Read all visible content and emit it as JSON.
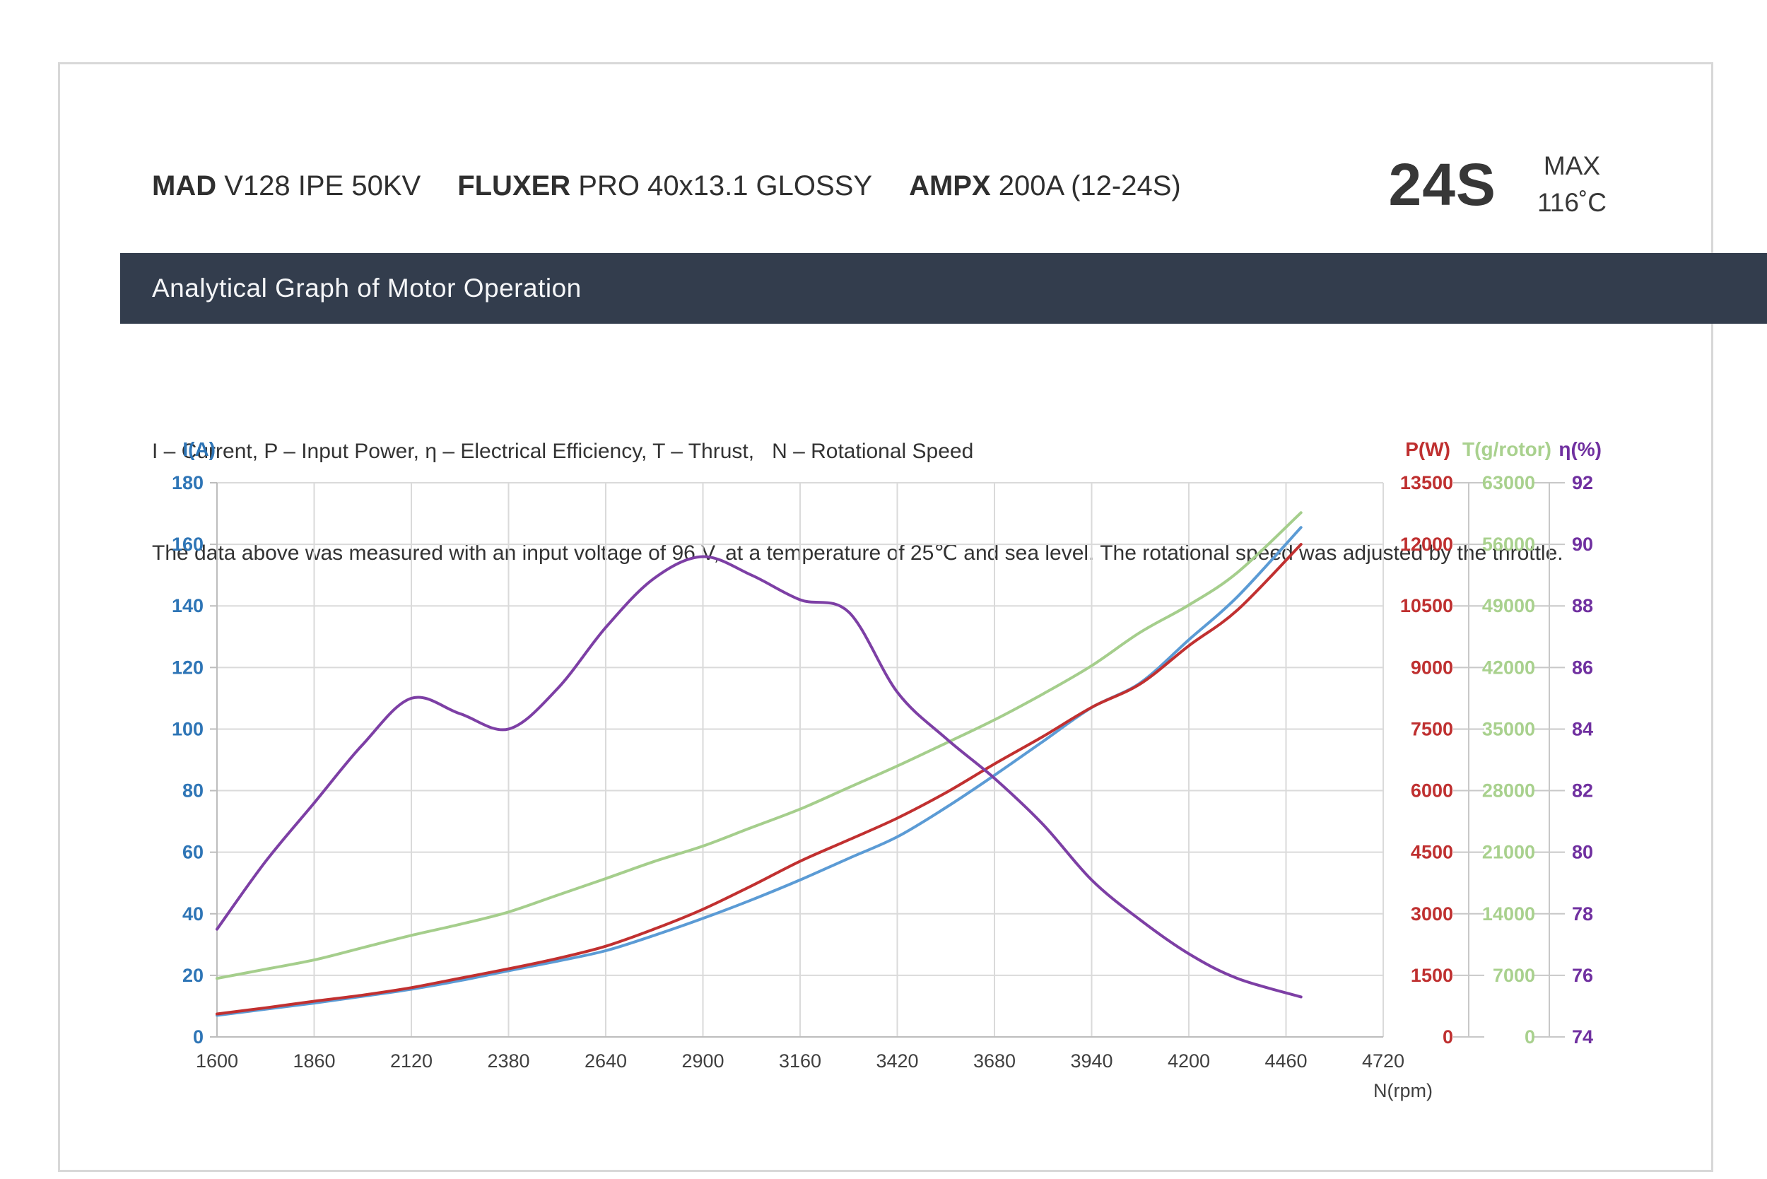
{
  "header": {
    "products": [
      {
        "brand": "MAD",
        "model": " V128 IPE 50KV"
      },
      {
        "brand": "FLUXER",
        "model": " PRO 40x13.1 GLOSSY"
      },
      {
        "brand": "AMPX",
        "model": " 200A (12-24S)"
      }
    ],
    "battery_rating": "24S",
    "max_label": "MAX",
    "max_temp": "116˚C"
  },
  "section": {
    "title": "Analytical Graph of Motor Operation"
  },
  "description": {
    "line1": "I – Current, P – Input Power, η – Electrical Efficiency, T – Thrust,   N – Rotational Speed",
    "line2": "The data above was measured with an input voltage of 96 V, at a temperature of 25℃ and sea level. The rotational speed was adjusted by the throttle."
  },
  "chart_data": {
    "type": "line",
    "title": "Analytical Graph of Motor Operation",
    "grid": true,
    "legend_position": "none",
    "x_axis": {
      "label": "N(rpm)",
      "min": 1600,
      "max": 4720,
      "step": 260,
      "tick_labels": [
        "1600",
        "1860",
        "2120",
        "2380",
        "2640",
        "2900",
        "3160",
        "3420",
        "3680",
        "3940",
        "4200",
        "4460",
        "4720"
      ],
      "tick_color": "#404040"
    },
    "y_axes": [
      {
        "id": "I",
        "label": "I(A)",
        "side": "left",
        "min": 0,
        "max": 180,
        "step": 20,
        "color": "#2e75b6",
        "tick_labels": [
          "180",
          "160",
          "140",
          "120",
          "100",
          "80",
          "60",
          "40",
          "20",
          "0"
        ]
      },
      {
        "id": "P",
        "label": "P(W)",
        "side": "right",
        "min": 0,
        "max": 13500,
        "step": 1500,
        "color": "#bf3030",
        "tick_labels": [
          "13500",
          "12000",
          "10500",
          "9000",
          "7500",
          "6000",
          "4500",
          "3000",
          "1500",
          "0"
        ]
      },
      {
        "id": "T",
        "label": "T(g/rotor)",
        "side": "right",
        "min": 0,
        "max": 63000,
        "step": 7000,
        "color": "#a9d18e",
        "tick_labels": [
          "63000",
          "56000",
          "49000",
          "42000",
          "35000",
          "28000",
          "21000",
          "14000",
          "7000",
          "0"
        ]
      },
      {
        "id": "eta",
        "label": "η(%)",
        "side": "right",
        "min": 74,
        "max": 92,
        "step": 2,
        "color": "#7030a0",
        "tick_labels": [
          "92",
          "90",
          "88",
          "86",
          "84",
          "82",
          "80",
          "78",
          "76",
          "74"
        ]
      }
    ],
    "x": [
      1600,
      1730,
      1860,
      1990,
      2120,
      2250,
      2380,
      2510,
      2640,
      2770,
      2900,
      3030,
      3160,
      3290,
      3420,
      3550,
      3680,
      3810,
      3940,
      4070,
      4200,
      4330,
      4500
    ],
    "series": [
      {
        "name": "I - Current",
        "axis": "I",
        "color": "#5b9bd5",
        "width": 4,
        "values": [
          7,
          9,
          11,
          13.2,
          15.5,
          18.3,
          21.5,
          24.6,
          28,
          33,
          38.5,
          44.5,
          51,
          58,
          65,
          74.5,
          85,
          96,
          107,
          115,
          129,
          143,
          165.5
        ]
      },
      {
        "name": "P - Input Power",
        "axis": "P",
        "color": "#c13030",
        "width": 4,
        "values": [
          560,
          710,
          870,
          1020,
          1200,
          1430,
          1660,
          1910,
          2210,
          2630,
          3110,
          3680,
          4280,
          4800,
          5330,
          5950,
          6650,
          7320,
          8030,
          8600,
          9530,
          10400,
          12000
        ]
      },
      {
        "name": "T - Thrust",
        "axis": "T",
        "color": "#a5ce8c",
        "width": 4,
        "values": [
          6650,
          7700,
          8750,
          10150,
          11550,
          12800,
          14200,
          16100,
          18000,
          19950,
          21700,
          23800,
          25900,
          28350,
          30800,
          33400,
          36050,
          39000,
          42200,
          46000,
          49100,
          52800,
          59600
        ]
      },
      {
        "name": "η - Electrical Efficiency",
        "axis": "eta",
        "color": "#7d3fa5",
        "width": 4,
        "values": [
          77.5,
          79.7,
          81.6,
          83.5,
          85.0,
          84.5,
          84.0,
          85.3,
          87.3,
          88.9,
          89.6,
          89.0,
          88.2,
          87.8,
          85.2,
          83.7,
          82.4,
          80.9,
          79.1,
          77.8,
          76.7,
          75.9,
          75.3
        ]
      }
    ],
    "colors": {
      "grid": "#dadada",
      "axis_line": "#bdbdbd",
      "aux_axis_line": "#c8c8c8"
    }
  }
}
